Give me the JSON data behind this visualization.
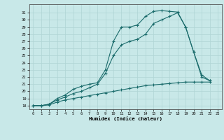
{
  "xlabel": "Humidex (Indice chaleur)",
  "bg_color": "#c8e8e8",
  "grid_color": "#afd4d4",
  "line_color": "#1a6b6b",
  "xlim": [
    -0.5,
    23.5
  ],
  "ylim": [
    17.5,
    32.2
  ],
  "xticks": [
    0,
    1,
    2,
    3,
    4,
    5,
    6,
    7,
    8,
    9,
    10,
    11,
    12,
    13,
    14,
    15,
    16,
    17,
    18,
    19,
    20,
    21,
    22,
    23
  ],
  "yticks": [
    18,
    19,
    20,
    21,
    22,
    23,
    24,
    25,
    26,
    27,
    28,
    29,
    30,
    31
  ],
  "line_max": {
    "x": [
      0,
      1,
      2,
      3,
      4,
      5,
      6,
      7,
      8,
      9,
      10,
      11,
      12,
      13,
      14,
      15,
      16,
      17,
      18,
      19,
      20,
      21,
      22
    ],
    "y": [
      18,
      18,
      18.2,
      19,
      19.5,
      20.3,
      20.7,
      21,
      21.2,
      23,
      27,
      29,
      29,
      29.3,
      30.5,
      31.2,
      31.3,
      31.2,
      31.1,
      29,
      25.5,
      22.3,
      21.5
    ]
  },
  "line_mid": {
    "x": [
      0,
      1,
      2,
      3,
      4,
      5,
      6,
      7,
      8,
      9,
      10,
      11,
      12,
      13,
      14,
      15,
      16,
      17,
      18,
      19,
      20,
      21,
      22
    ],
    "y": [
      18,
      18,
      18.2,
      18.8,
      19.2,
      19.7,
      20,
      20.5,
      21,
      22.5,
      25,
      26.5,
      27,
      27.3,
      28,
      29.5,
      30,
      30.5,
      31,
      29,
      25.5,
      22,
      21.5
    ]
  },
  "line_min": {
    "x": [
      0,
      1,
      2,
      3,
      4,
      5,
      6,
      7,
      8,
      9,
      10,
      11,
      12,
      13,
      14,
      15,
      16,
      17,
      18,
      19,
      20,
      21,
      22
    ],
    "y": [
      18,
      18,
      18.1,
      18.5,
      18.8,
      19.0,
      19.2,
      19.4,
      19.6,
      19.8,
      20.0,
      20.2,
      20.4,
      20.6,
      20.8,
      20.9,
      21.0,
      21.1,
      21.2,
      21.3,
      21.3,
      21.3,
      21.3
    ]
  }
}
